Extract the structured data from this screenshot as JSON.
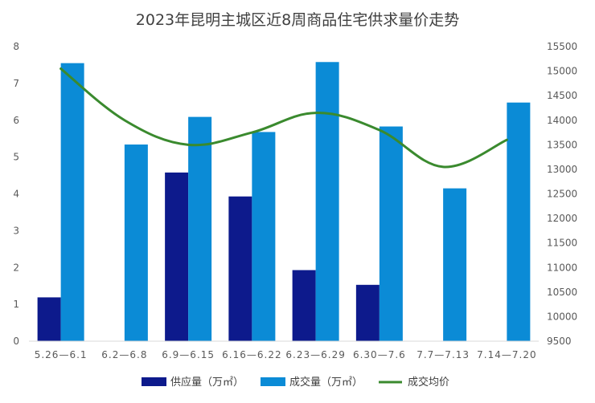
{
  "chart_data": {
    "type": "bar",
    "title": "2023年昆明主城区近8周商品住宅供求量价走势",
    "categories": [
      "5.26—6.1",
      "6.2—6.8",
      "6.9—6.15",
      "6.16—6.22",
      "6.23—6.29",
      "6.30—7.6",
      "7.7—7.13",
      "7.14—7.20"
    ],
    "series": [
      {
        "name": "供应量（万㎡）",
        "type": "bar",
        "axis": "left",
        "color": "#0d1a8c",
        "values": [
          1.19,
          null,
          4.58,
          3.93,
          1.93,
          1.53,
          null,
          null
        ]
      },
      {
        "name": "成交量（万㎡）",
        "type": "bar",
        "axis": "left",
        "color": "#0b8bd6",
        "values": [
          7.55,
          5.34,
          6.09,
          5.68,
          7.58,
          5.83,
          4.15,
          6.48
        ]
      },
      {
        "name": "成交均价",
        "type": "line",
        "axis": "right",
        "smooth": true,
        "color": "#3a8a2e",
        "values": [
          15050,
          14000,
          13500,
          13750,
          14150,
          13800,
          13050,
          13600
        ]
      }
    ],
    "y_left": {
      "min": 0,
      "max": 8,
      "ticks": [
        "0",
        "1",
        "2",
        "3",
        "4",
        "5",
        "6",
        "7",
        "8"
      ]
    },
    "y_right": {
      "min": 9500,
      "max": 15500,
      "ticks": [
        "9500",
        "10000",
        "10500",
        "11000",
        "11500",
        "12000",
        "12500",
        "13000",
        "13500",
        "14000",
        "14500",
        "15000",
        "15500"
      ]
    },
    "grid": false,
    "legend": "bottom"
  }
}
